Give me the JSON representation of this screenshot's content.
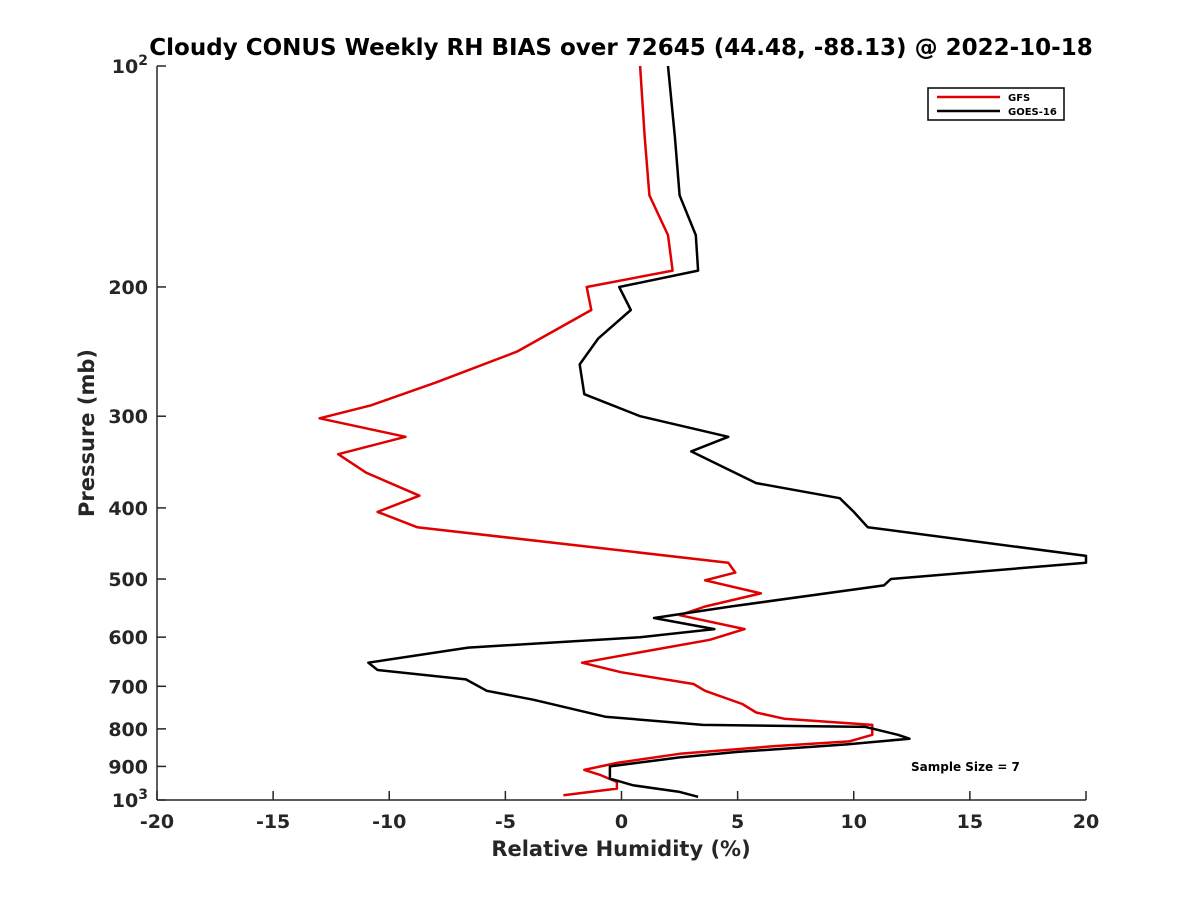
{
  "chart_data": {
    "type": "line",
    "title": "Cloudy CONUS Weekly RH BIAS over 72645 (44.48, -88.13) @ 2022-10-18",
    "xlabel": "Relative Humidity (%)",
    "ylabel": "Pressure (mb)",
    "xlim": [
      -20,
      20
    ],
    "ylim": [
      100,
      1000
    ],
    "yscale": "log",
    "y_reversed": true,
    "x_ticks": [
      "-20",
      "-15",
      "-10",
      "-5",
      "0",
      "5",
      "10",
      "15",
      "20"
    ],
    "y_ticks": [
      {
        "value": 100,
        "base": "10",
        "exp": "2"
      },
      {
        "value": 200,
        "label": "200"
      },
      {
        "value": 300,
        "label": "300"
      },
      {
        "value": 400,
        "label": "400"
      },
      {
        "value": 500,
        "label": "500"
      },
      {
        "value": 600,
        "label": "600"
      },
      {
        "value": 700,
        "label": "700"
      },
      {
        "value": 800,
        "label": "800"
      },
      {
        "value": 900,
        "label": "900"
      },
      {
        "value": 1000,
        "base": "10",
        "exp": "3"
      }
    ],
    "grid": false,
    "legend_position": "top-right",
    "annotation": "Sample Size = 7",
    "series": [
      {
        "name": "GFS",
        "color": "#e00000",
        "points": [
          [
            0.8,
            100
          ],
          [
            1.0,
            125
          ],
          [
            1.2,
            150
          ],
          [
            2.0,
            170
          ],
          [
            2.2,
            190
          ],
          [
            -1.5,
            200
          ],
          [
            -1.3,
            215
          ],
          [
            -4.5,
            245
          ],
          [
            -8,
            270
          ],
          [
            -10.8,
            290
          ],
          [
            -13,
            302
          ],
          [
            -9.3,
            320
          ],
          [
            -12.2,
            338
          ],
          [
            -11,
            358
          ],
          [
            -8.7,
            385
          ],
          [
            -10.5,
            405
          ],
          [
            -8.8,
            425
          ],
          [
            4.6,
            475
          ],
          [
            4.9,
            490
          ],
          [
            3.6,
            502
          ],
          [
            6.0,
            523
          ],
          [
            3.6,
            545
          ],
          [
            2.5,
            560
          ],
          [
            5.3,
            585
          ],
          [
            3.8,
            605
          ],
          [
            -1.7,
            650
          ],
          [
            0.0,
            670
          ],
          [
            3.1,
            695
          ],
          [
            3.6,
            710
          ],
          [
            5.2,
            740
          ],
          [
            5.8,
            760
          ],
          [
            7.0,
            775
          ],
          [
            10.8,
            790
          ],
          [
            10.8,
            815
          ],
          [
            9.8,
            832
          ],
          [
            6.5,
            845
          ],
          [
            2.5,
            865
          ],
          [
            -0.2,
            890
          ],
          [
            -1.6,
            910
          ],
          [
            -0.9,
            925
          ],
          [
            -0.2,
            945
          ],
          [
            -0.2,
            965
          ],
          [
            -2.5,
            985
          ]
        ]
      },
      {
        "name": "GOES-16",
        "color": "#000000",
        "points": [
          [
            2.0,
            100
          ],
          [
            2.3,
            125
          ],
          [
            2.5,
            150
          ],
          [
            3.2,
            170
          ],
          [
            3.3,
            190
          ],
          [
            -0.1,
            200
          ],
          [
            0.4,
            215
          ],
          [
            -1.0,
            235
          ],
          [
            -1.8,
            255
          ],
          [
            -1.6,
            280
          ],
          [
            0.8,
            300
          ],
          [
            4.6,
            320
          ],
          [
            3.0,
            335
          ],
          [
            5.8,
            370
          ],
          [
            9.4,
            388
          ],
          [
            10.0,
            405
          ],
          [
            10.6,
            425
          ],
          [
            20,
            465
          ],
          [
            20,
            475
          ],
          [
            11.6,
            500
          ],
          [
            11.3,
            510
          ],
          [
            4.7,
            545
          ],
          [
            1.4,
            565
          ],
          [
            4.0,
            585
          ],
          [
            0.8,
            600
          ],
          [
            -6.6,
            620
          ],
          [
            -10.9,
            650
          ],
          [
            -10.5,
            665
          ],
          [
            -6.7,
            685
          ],
          [
            -5.8,
            710
          ],
          [
            -3.8,
            730
          ],
          [
            -0.7,
            770
          ],
          [
            3.5,
            790
          ],
          [
            10.5,
            795
          ],
          [
            11.9,
            815
          ],
          [
            12.4,
            825
          ],
          [
            9.7,
            840
          ],
          [
            5.0,
            860
          ],
          [
            2.5,
            875
          ],
          [
            -0.5,
            900
          ],
          [
            -0.5,
            935
          ],
          [
            0.5,
            955
          ],
          [
            2.5,
            975
          ],
          [
            3.3,
            990
          ]
        ]
      }
    ]
  }
}
